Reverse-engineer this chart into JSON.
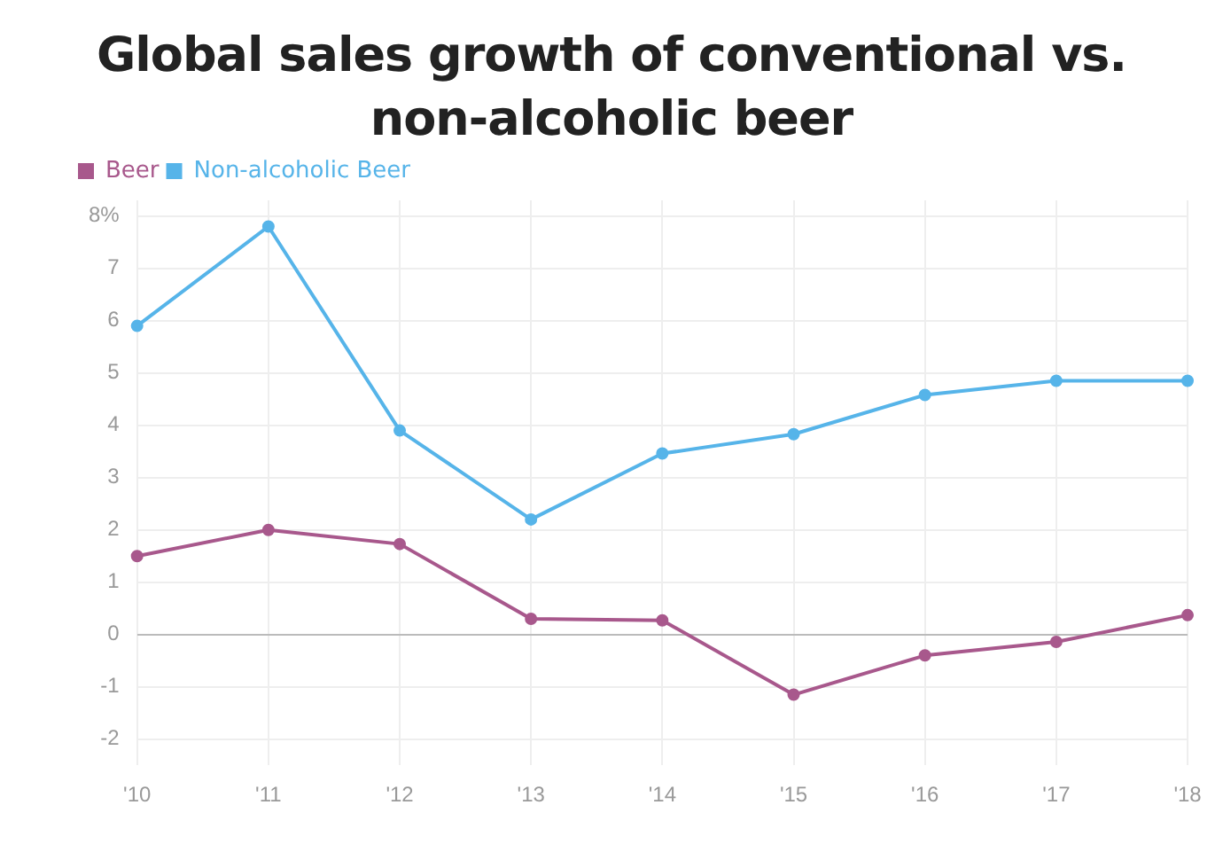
{
  "chart_data": {
    "type": "line",
    "title": "Global sales growth of conventional vs. non-alcoholic beer",
    "categories": [
      "'10",
      "'11",
      "'12",
      "'13",
      "'14",
      "'15",
      "'16",
      "'17",
      "'18"
    ],
    "series": [
      {
        "name": "Beer",
        "color": "#a8588c",
        "values": [
          1.5,
          2.0,
          1.73,
          0.3,
          0.27,
          -1.15,
          -0.4,
          -0.14,
          0.37
        ]
      },
      {
        "name": "Non-alcoholic Beer",
        "color": "#56b4e9",
        "values": [
          5.9,
          7.8,
          3.9,
          2.2,
          3.46,
          3.83,
          4.58,
          4.85,
          4.85
        ]
      }
    ],
    "ylim": [
      -2.5,
      8.3
    ],
    "yticks": [
      -2,
      -1,
      0,
      1,
      2,
      3,
      4,
      5,
      6,
      7,
      {
        "value": 8,
        "label": "8%"
      }
    ],
    "grid": true,
    "legend": "top left",
    "marker": "circle",
    "line_style": "solid"
  }
}
